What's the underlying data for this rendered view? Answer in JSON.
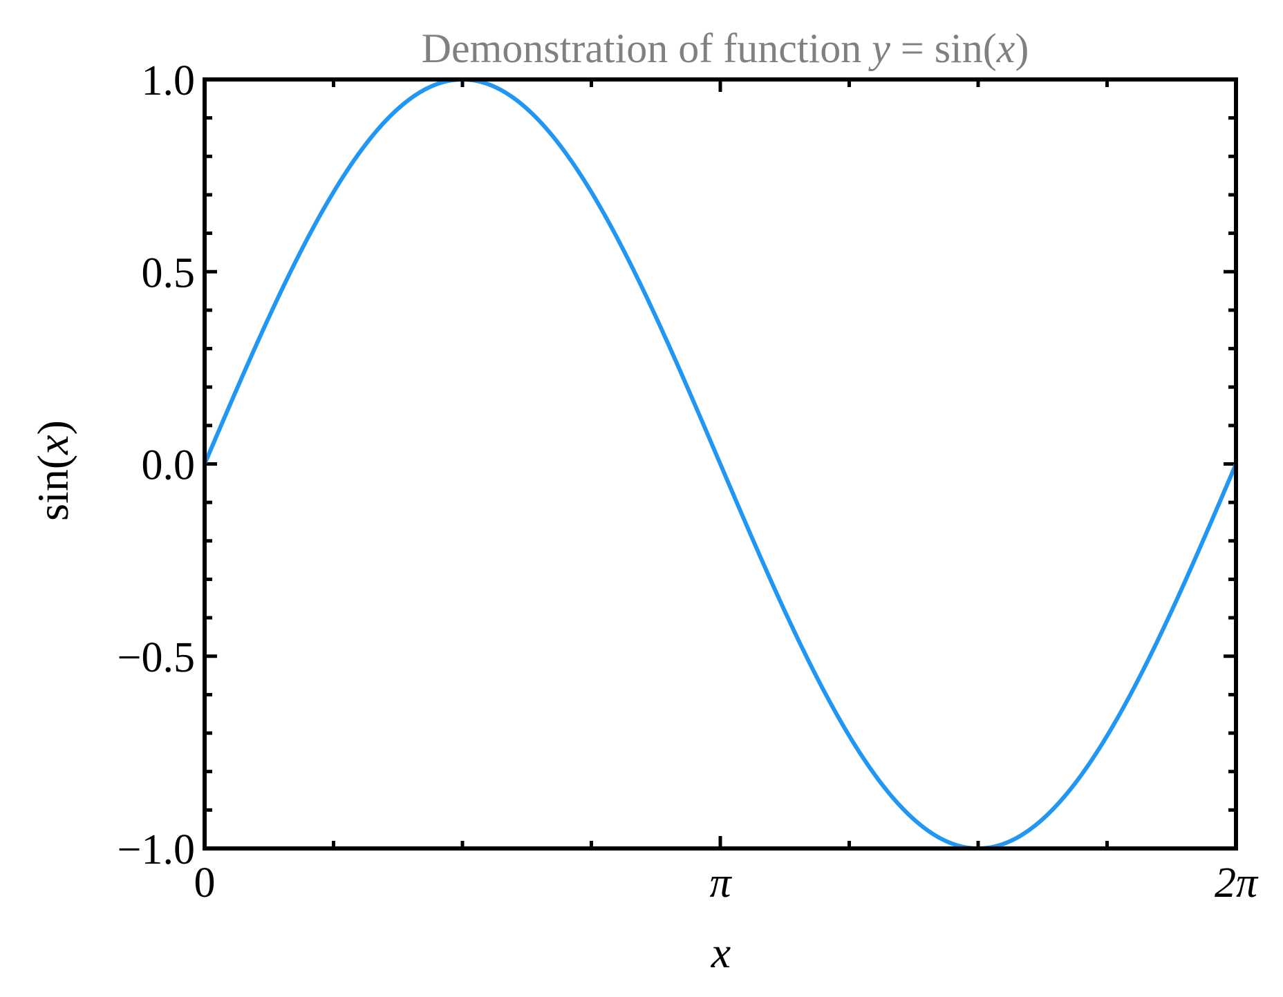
{
  "chart_data": {
    "type": "line",
    "title_parts": {
      "prefix": "Demonstration of function ",
      "math_var_y": "y",
      "equals": " = sin(",
      "math_var_x": "x",
      "close": ")"
    },
    "xlabel": "x",
    "ylabel_parts": {
      "prefix": "sin(",
      "var": "x",
      "suffix": ")"
    },
    "x_ticks": [
      {
        "value": 0,
        "label": "0"
      },
      {
        "value": 3.14159265,
        "label": "π"
      },
      {
        "value": 6.28318531,
        "label": "2π"
      }
    ],
    "y_ticks": [
      {
        "value": -1.0,
        "label": "−1.0"
      },
      {
        "value": -0.5,
        "label": "−0.5"
      },
      {
        "value": 0.0,
        "label": "0.0"
      },
      {
        "value": 0.5,
        "label": "0.5"
      },
      {
        "value": 1.0,
        "label": "1.0"
      }
    ],
    "xlim": [
      0,
      6.28318531
    ],
    "ylim": [
      -1.0,
      1.0
    ],
    "x_minor_step": 0.78539816,
    "y_minor_step": 0.1,
    "grid": false,
    "series": [
      {
        "function": "sin",
        "x": [
          0.0,
          0.3142,
          0.6283,
          0.9425,
          1.2566,
          1.5708,
          1.885,
          2.1991,
          2.5133,
          2.8274,
          3.1416,
          3.4558,
          3.7699,
          4.0841,
          4.3982,
          4.7124,
          5.0265,
          5.3407,
          5.6549,
          5.969,
          6.2832
        ],
        "y": [
          0.0,
          0.309,
          0.5878,
          0.809,
          0.9511,
          1.0,
          0.9511,
          0.809,
          0.5878,
          0.309,
          0.0,
          -0.309,
          -0.5878,
          -0.809,
          -0.9511,
          -1.0,
          -0.9511,
          -0.809,
          -0.5878,
          -0.309,
          0.0
        ],
        "color": "#2196f3"
      }
    ],
    "colors": {
      "title": "#808080",
      "axes": "#000000",
      "line": "#2196f3"
    }
  }
}
